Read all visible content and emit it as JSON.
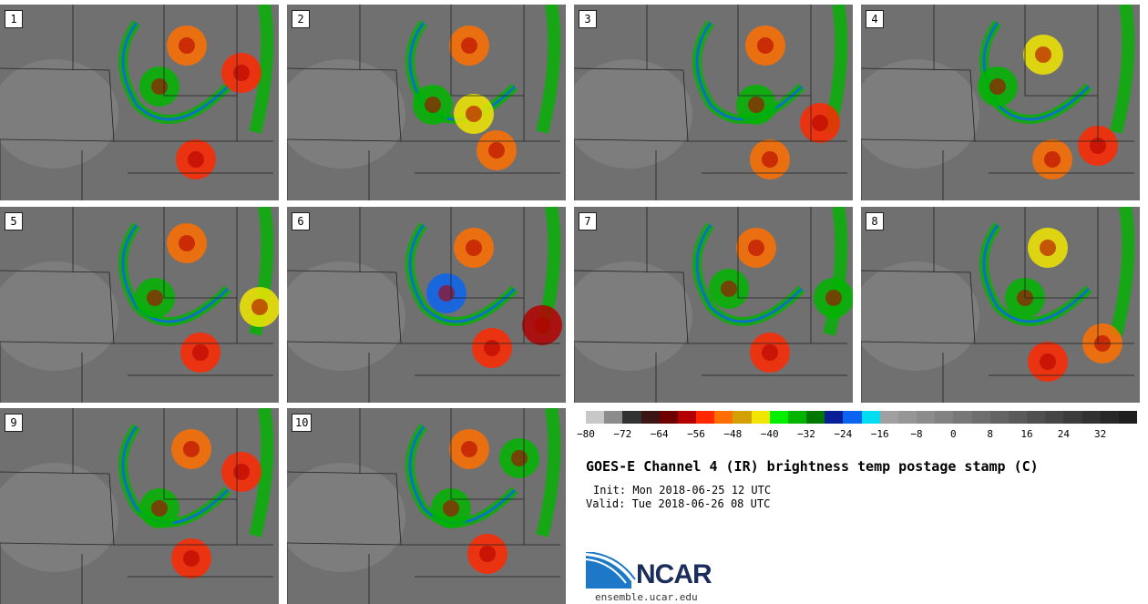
{
  "panels": [
    {
      "label": "1"
    },
    {
      "label": "2"
    },
    {
      "label": "3"
    },
    {
      "label": "4"
    },
    {
      "label": "5"
    },
    {
      "label": "6"
    },
    {
      "label": "7"
    },
    {
      "label": "8"
    },
    {
      "label": "9"
    },
    {
      "label": "10"
    }
  ],
  "colorbar": {
    "colors": [
      "#c8c8c8",
      "#8c8c8c",
      "#323232",
      "#3c1414",
      "#6e0000",
      "#b40000",
      "#ff2800",
      "#ff6e00",
      "#d2a000",
      "#f0e600",
      "#00f000",
      "#00b400",
      "#007800",
      "#0a1e96",
      "#0a64f0",
      "#00dcf0",
      "#a0a0a0",
      "#969696",
      "#8c8c8c",
      "#828282",
      "#787878",
      "#6e6e6e",
      "#646464",
      "#5a5a5a",
      "#505050",
      "#464646",
      "#3c3c3c",
      "#323232",
      "#282828",
      "#1e1e1e"
    ],
    "tick_labels": [
      "−80",
      "−72",
      "−64",
      "−56",
      "−48",
      "−40",
      "−32",
      "−24",
      "−16",
      "−8",
      "0",
      "8",
      "16",
      "24",
      "32"
    ]
  },
  "title": "GOES-E Channel 4 (IR) brightness temp postage stamp (C)",
  "init": "Init: Mon 2018-06-25 12 UTC",
  "valid": "Valid: Tue 2018-06-26 08 UTC",
  "logo_text": "NCAR",
  "url": "ensemble.ucar.edu"
}
